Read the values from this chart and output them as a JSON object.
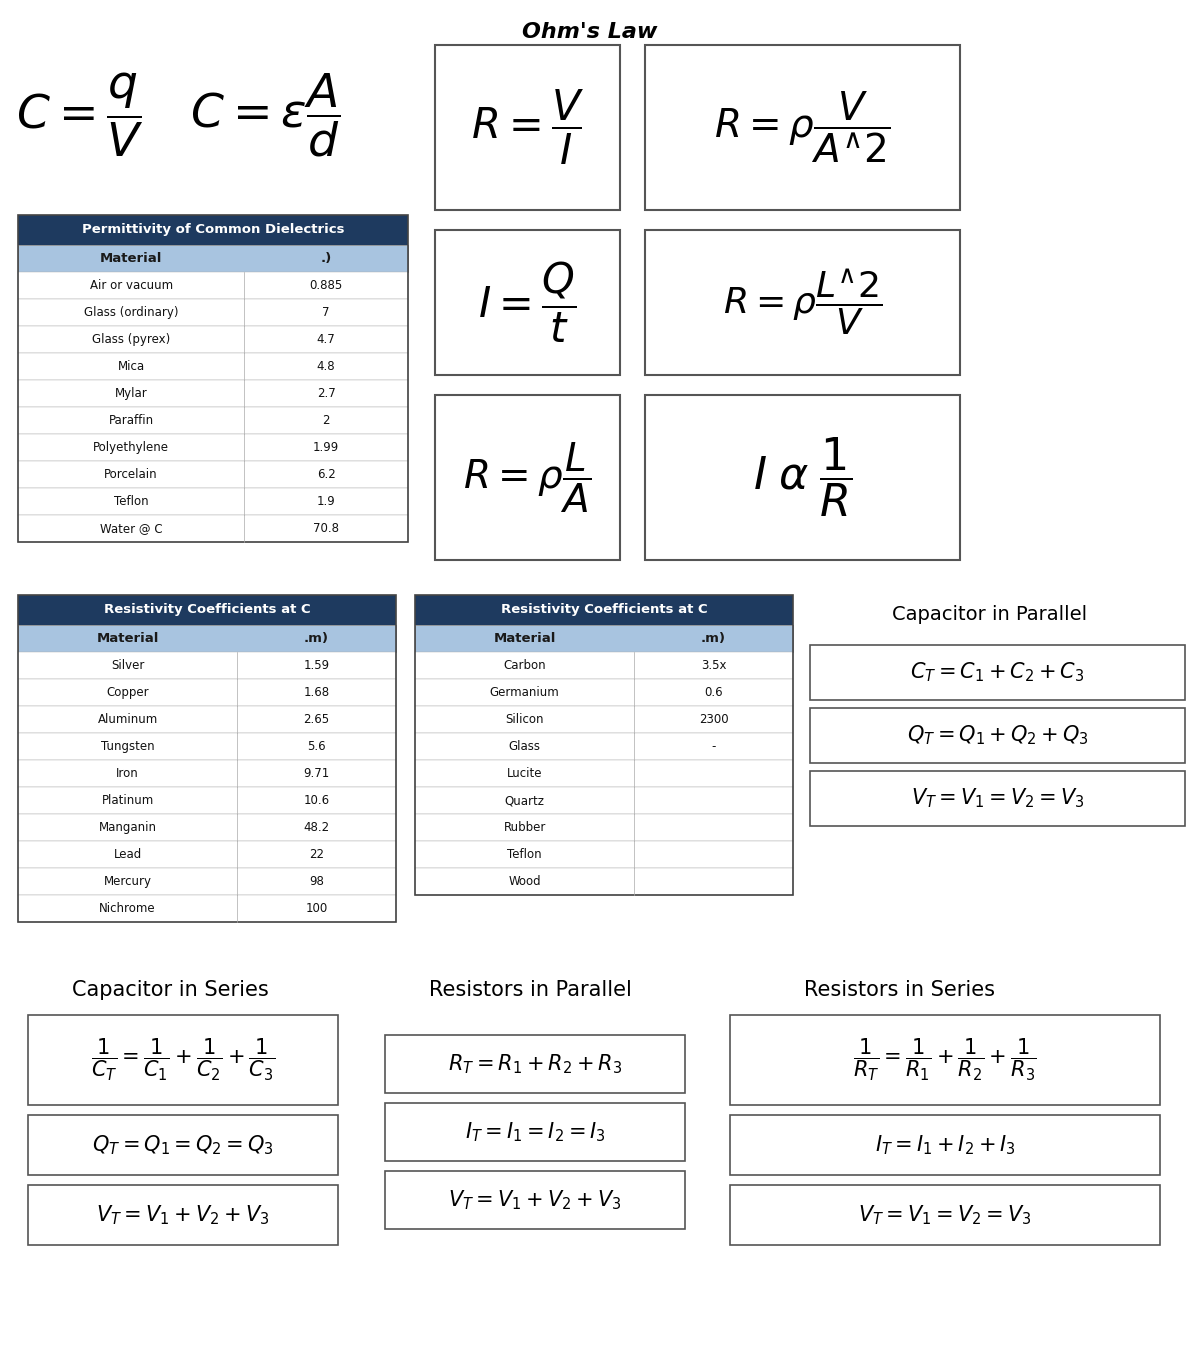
{
  "title": "Ohm's Law",
  "bg_color": "#ffffff",
  "header_color": "#1e3a5f",
  "subheader_color": "#a8c4e0",
  "header_text_color": "#ffffff",
  "subheader_text_color": "#1a1a1a",
  "permittivity_title": "Permittivity of Common Dielectrics",
  "permittivity_col1": "Material",
  "permittivity_col2": ".)",
  "permittivity_data": [
    [
      "Air or vacuum",
      "0.885"
    ],
    [
      "Glass (ordinary)",
      "7"
    ],
    [
      "Glass (pyrex)",
      "4.7"
    ],
    [
      "Mica",
      "4.8"
    ],
    [
      "Mylar",
      "2.7"
    ],
    [
      "Paraffin",
      "2"
    ],
    [
      "Polyethylene",
      "1.99"
    ],
    [
      "Porcelain",
      "6.2"
    ],
    [
      "Teflon",
      "1.9"
    ],
    [
      "Water @ C",
      "70.8"
    ]
  ],
  "resistivity1_title": "Resistivity Coefficients at C",
  "resistivity1_col1": "Material",
  "resistivity1_col2": ".m)",
  "resistivity1_data": [
    [
      "Silver",
      "1.59"
    ],
    [
      "Copper",
      "1.68"
    ],
    [
      "Aluminum",
      "2.65"
    ],
    [
      "Tungsten",
      "5.6"
    ],
    [
      "Iron",
      "9.71"
    ],
    [
      "Platinum",
      "10.6"
    ],
    [
      "Manganin",
      "48.2"
    ],
    [
      "Lead",
      "22"
    ],
    [
      "Mercury",
      "98"
    ],
    [
      "Nichrome",
      "100"
    ]
  ],
  "resistivity2_title": "Resistivity Coefficients at C",
  "resistivity2_col1": "Material",
  "resistivity2_col2": ".m)",
  "resistivity2_data": [
    [
      "Carbon",
      "3.5x"
    ],
    [
      "Germanium",
      "0.6"
    ],
    [
      "Silicon",
      "2300"
    ],
    [
      "Glass",
      "-"
    ],
    [
      "Lucite",
      ""
    ],
    [
      "Quartz",
      ""
    ],
    [
      "Rubber",
      ""
    ],
    [
      "Teflon",
      ""
    ],
    [
      "Wood",
      ""
    ]
  ],
  "cap_parallel_title": "Capacitor in Parallel",
  "cap_series_title": "Capacitor in Series",
  "res_parallel_title": "Resistors in Parallel",
  "res_series_title": "Resistors in Series"
}
